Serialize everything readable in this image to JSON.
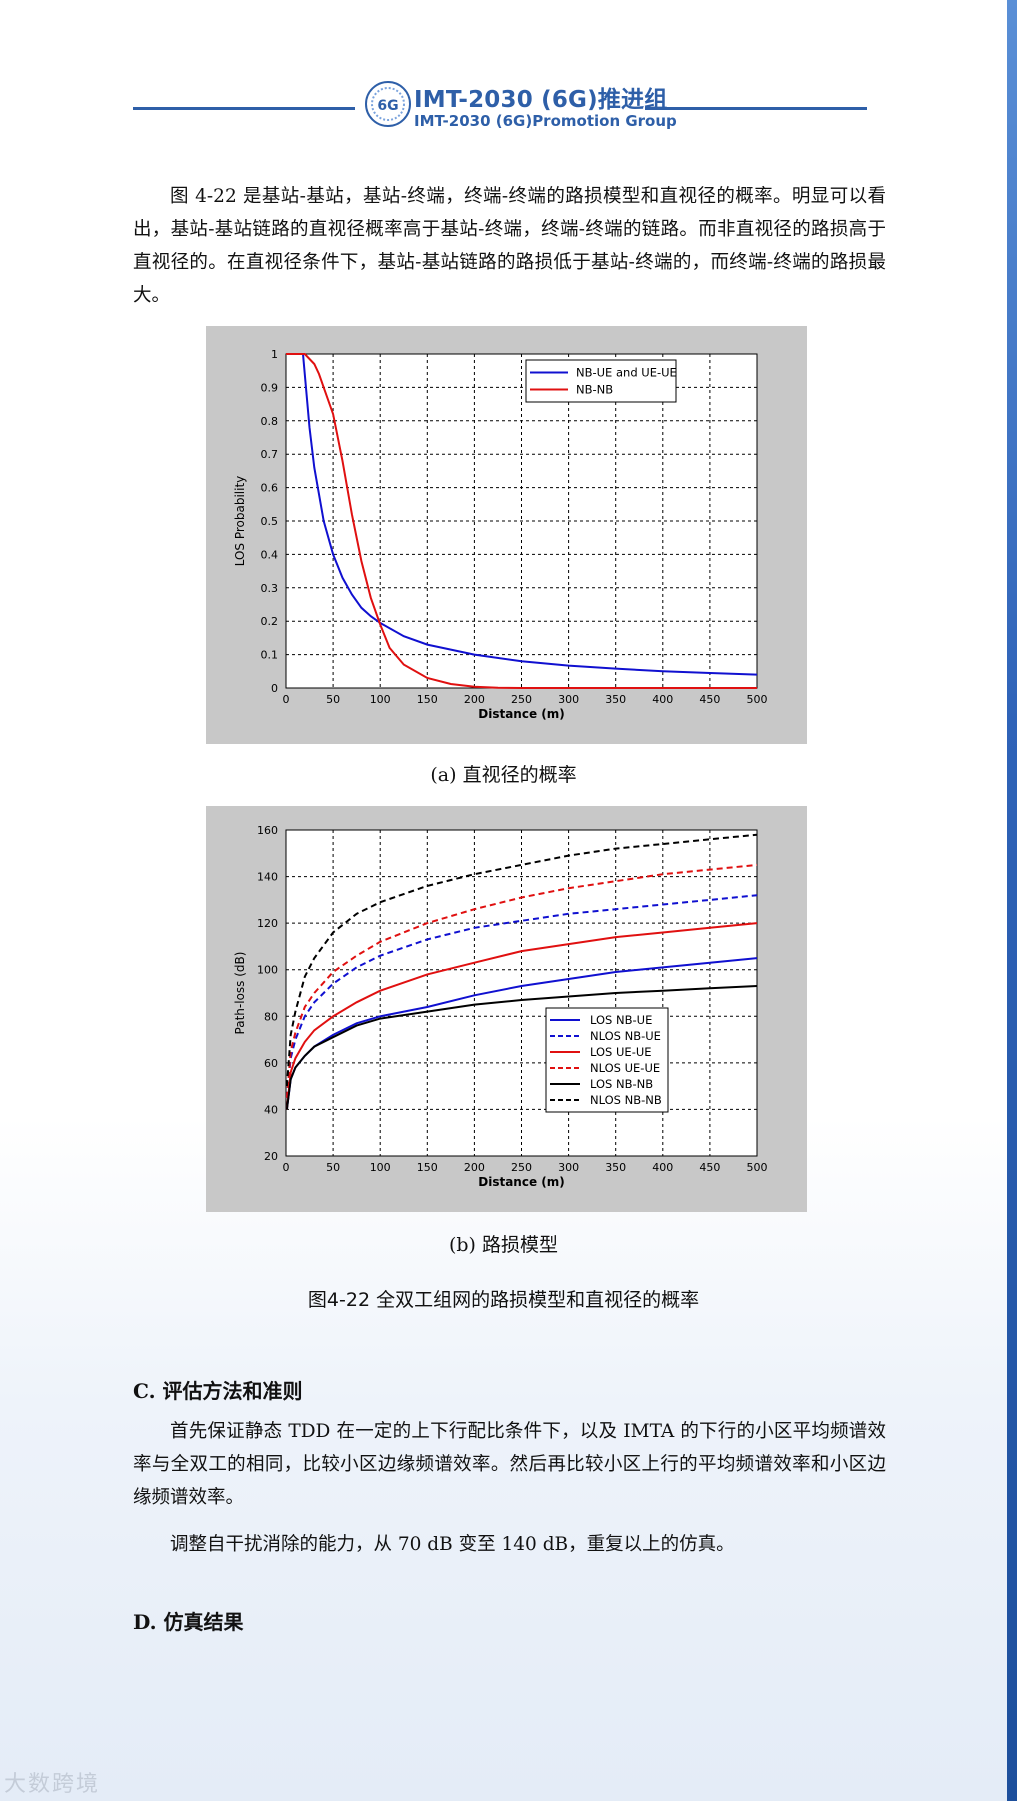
{
  "header": {
    "title": "IMT-2030 (6G)推进组",
    "subtitle": "IMT-2030 (6G)Promotion Group",
    "logo_text": "6G",
    "logo_ring_text": "IMT-2030"
  },
  "intro_paragraph": "图 4-22 是基站-基站，基站-终端，终端-终端的路损模型和直视径的概率。明显可以看出，基站-基站链路的直视径概率高于基站-终端，终端-终端的链路。而非直视径的路损高于直视径的。在直视径条件下，基站-基站链路的路损低于基站-终端的，而终端-终端的路损最大。",
  "captions": {
    "a": "(a) 直视径的概率",
    "b": "(b) 路损模型",
    "figure": "图4-22 全双工组网的路损模型和直视径的概率"
  },
  "section_c": {
    "heading": "C. 评估方法和准则",
    "p1": "首先保证静态 TDD 在一定的上下行配比条件下，以及 IMTA 的下行的小区平均频谱效率与全双工的相同，比较小区边缘频谱效率。然后再比较小区上行的平均频谱效率和小区边缘频谱效率。",
    "p2": "调整自干扰消除的能力，从 70 dB 变至 140 dB，重复以上的仿真。"
  },
  "section_d": {
    "heading": "D. 仿真结果"
  },
  "watermark": "大数跨境",
  "chart_data": [
    {
      "type": "line",
      "xlabel": "Distance (m)",
      "ylabel": "LOS Probability",
      "xlim": [
        0,
        500
      ],
      "ylim": [
        0,
        1
      ],
      "xticks": [
        0,
        50,
        100,
        150,
        200,
        250,
        300,
        350,
        400,
        450,
        500
      ],
      "yticks": [
        0,
        0.1,
        0.2,
        0.3,
        0.4,
        0.5,
        0.6,
        0.7,
        0.8,
        0.9,
        1
      ],
      "grid": true,
      "legend_position": "top-right",
      "series": [
        {
          "name": "NB-UE and UE-UE",
          "color": "#1010d0",
          "dash": "solid",
          "x": [
            0,
            18,
            25,
            30,
            40,
            50,
            60,
            70,
            80,
            90,
            100,
            125,
            150,
            200,
            250,
            300,
            350,
            400,
            450,
            500
          ],
          "y": [
            1,
            1,
            0.78,
            0.66,
            0.5,
            0.4,
            0.33,
            0.28,
            0.24,
            0.215,
            0.195,
            0.155,
            0.13,
            0.1,
            0.08,
            0.067,
            0.058,
            0.05,
            0.045,
            0.04
          ]
        },
        {
          "name": "NB-NB",
          "color": "#e01010",
          "dash": "solid",
          "x": [
            0,
            20,
            30,
            35,
            40,
            50,
            60,
            70,
            80,
            90,
            100,
            110,
            125,
            150,
            175,
            200,
            225,
            250,
            300,
            400,
            500
          ],
          "y": [
            1,
            1,
            0.97,
            0.94,
            0.9,
            0.82,
            0.68,
            0.52,
            0.38,
            0.27,
            0.19,
            0.12,
            0.07,
            0.03,
            0.012,
            0.004,
            0.001,
            0,
            0,
            0,
            0
          ]
        }
      ]
    },
    {
      "type": "line",
      "xlabel": "Distance (m)",
      "ylabel": "Path-loss (dB)",
      "xlim": [
        0,
        500
      ],
      "ylim": [
        20,
        160
      ],
      "xticks": [
        0,
        50,
        100,
        150,
        200,
        250,
        300,
        350,
        400,
        450,
        500
      ],
      "yticks": [
        20,
        40,
        60,
        80,
        100,
        120,
        140,
        160
      ],
      "grid": true,
      "legend_position": "bottom-right",
      "series": [
        {
          "name": "LOS   NB-UE",
          "color": "#1010d0",
          "dash": "solid",
          "x": [
            1,
            5,
            10,
            20,
            30,
            50,
            75,
            100,
            150,
            200,
            250,
            300,
            350,
            400,
            450,
            500
          ],
          "y": [
            40,
            53,
            58,
            63,
            67,
            72,
            77,
            80,
            84,
            89,
            93,
            96,
            99,
            101,
            103,
            105
          ]
        },
        {
          "name": "NLOS  NB-UE",
          "color": "#1010d0",
          "dash": "dashed",
          "x": [
            1,
            5,
            10,
            20,
            30,
            50,
            75,
            100,
            150,
            200,
            250,
            300,
            350,
            400,
            450,
            500
          ],
          "y": [
            45,
            62,
            70,
            80,
            86,
            94,
            101,
            106,
            113,
            118,
            121,
            124,
            126,
            128,
            130,
            132
          ]
        },
        {
          "name": "LOS    UE-UE",
          "color": "#e01010",
          "dash": "solid",
          "x": [
            1,
            5,
            10,
            20,
            30,
            50,
            75,
            100,
            150,
            200,
            250,
            300,
            350,
            400,
            450,
            500
          ],
          "y": [
            40,
            56,
            62,
            69,
            74,
            80,
            86,
            91,
            98,
            103,
            108,
            111,
            114,
            116,
            118,
            120
          ]
        },
        {
          "name": "NLOS  UE-UE",
          "color": "#e01010",
          "dash": "dashed",
          "x": [
            1,
            5,
            10,
            20,
            30,
            50,
            75,
            100,
            150,
            200,
            250,
            300,
            350,
            400,
            450,
            500
          ],
          "y": [
            45,
            65,
            73,
            84,
            90,
            99,
            106,
            112,
            120,
            126,
            131,
            135,
            138,
            141,
            143,
            145
          ]
        },
        {
          "name": "LOS    NB-NB",
          "color": "#000000",
          "dash": "solid",
          "x": [
            1,
            5,
            10,
            20,
            30,
            50,
            75,
            100,
            150,
            200,
            250,
            300,
            350,
            400,
            450,
            500
          ],
          "y": [
            40,
            53,
            58,
            63,
            67,
            71,
            76,
            79,
            82,
            85,
            87,
            88.5,
            90,
            91,
            92,
            93
          ]
        },
        {
          "name": "NLOS  NB-NB",
          "color": "#000000",
          "dash": "dashed",
          "x": [
            1,
            5,
            10,
            20,
            30,
            50,
            75,
            100,
            150,
            200,
            250,
            300,
            350,
            400,
            450,
            500
          ],
          "y": [
            50,
            72,
            82,
            97,
            105,
            116,
            124,
            129,
            136,
            141,
            145,
            149,
            152,
            154,
            156,
            158
          ]
        }
      ]
    }
  ]
}
